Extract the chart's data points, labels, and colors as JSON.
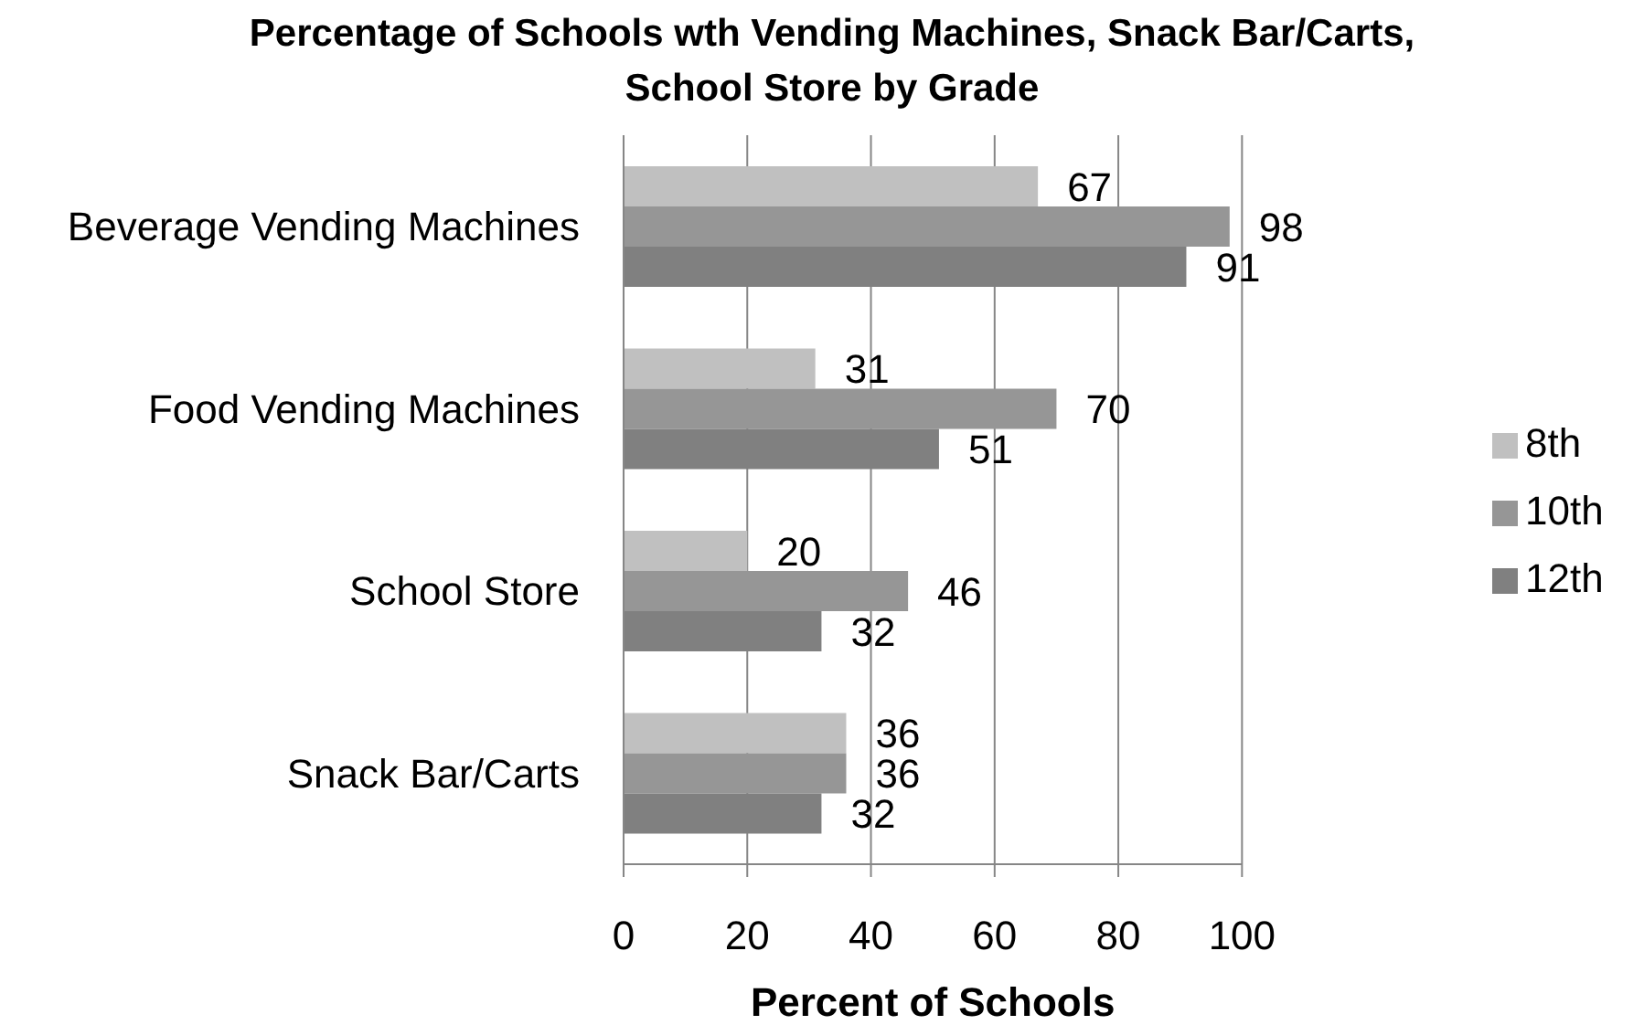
{
  "chart_data": {
    "type": "bar",
    "orientation": "horizontal",
    "title": "Percentage of Schools wth Vending Machines, Snack Bar/Carts, School Store by Grade",
    "xlabel": "Percent of Schools",
    "categories": [
      "Beverage Vending Machines",
      "Food Vending Machines",
      "School Store",
      "Snack Bar/Carts"
    ],
    "series": [
      {
        "name": "8th",
        "color": "#c0c0c0",
        "values": [
          67,
          31,
          20,
          36
        ]
      },
      {
        "name": "10th",
        "color": "#969696",
        "values": [
          98,
          70,
          46,
          36
        ]
      },
      {
        "name": "12th",
        "color": "#808080",
        "values": [
          91,
          51,
          32,
          32
        ]
      }
    ],
    "xlim": [
      0,
      100
    ],
    "xticks": [
      0,
      20,
      40,
      60,
      80,
      100
    ],
    "grid": "x",
    "legend": "right",
    "data_labels": true
  }
}
